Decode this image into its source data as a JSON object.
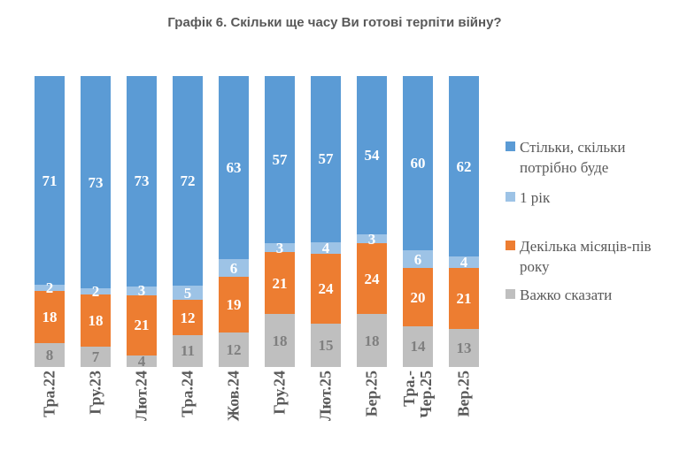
{
  "title": "Графік 6. Скільки ще часу Ви готові терпіти війну?",
  "chart_data": {
    "type": "bar",
    "subtype": "100%-stacked-column",
    "orientation": "vertical",
    "grid": false,
    "axis_lines": false,
    "legend_position": "right",
    "categories": [
      "Тра.22",
      "Гру.23",
      "Лют.24",
      "Тра.24",
      "Жов.24",
      "Гру.24",
      "Лют.25",
      "Бер.25",
      "Тра.-\nЧер.25",
      "Вер.25"
    ],
    "series": [
      {
        "name": "Стільки, скільки потрібно буде",
        "color": "#5B9BD5",
        "label_color": "#FFFFFF",
        "values": [
          71,
          73,
          73,
          72,
          63,
          57,
          57,
          54,
          60,
          62
        ]
      },
      {
        "name": "1 рік",
        "color": "#9DC3E6",
        "label_color": "#FFFFFF",
        "values": [
          2,
          2,
          3,
          5,
          6,
          3,
          4,
          3,
          6,
          4
        ]
      },
      {
        "name": "Декілька місяців-пів року",
        "color": "#ED7D31",
        "label_color": "#FFFFFF",
        "values": [
          18,
          18,
          21,
          12,
          19,
          21,
          24,
          24,
          20,
          21
        ]
      },
      {
        "name": "Важко сказати",
        "color": "#BFBFBF",
        "label_color": "#7F7F7F",
        "values": [
          8,
          7,
          4,
          11,
          12,
          18,
          15,
          18,
          14,
          13
        ]
      }
    ],
    "stack_order_bottom_to_top": [
      3,
      2,
      1,
      0
    ]
  },
  "styles": {
    "title_color": "#595959",
    "axis_label_color": "#595959",
    "legend_text_color": "#595959",
    "background": "#FFFFFF"
  }
}
